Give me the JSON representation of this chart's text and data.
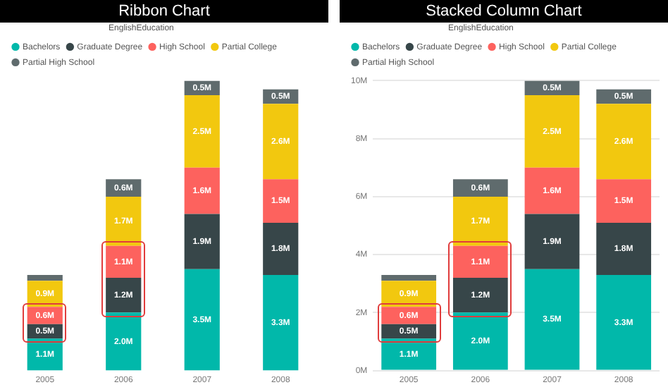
{
  "chart_data": [
    {
      "type": "bar",
      "title": "Ribbon Chart",
      "legend_title": "EnglishEducation",
      "legend": "top left",
      "tick_labels": "x",
      "stacked": true,
      "categories": [
        "2005",
        "2006",
        "2007",
        "2008"
      ],
      "series": [
        {
          "name": "Bachelors",
          "color": "#01b8aa",
          "values": [
            1.1,
            2.0,
            3.5,
            3.3
          ],
          "value_labels": [
            "1.1M",
            "2.0M",
            "3.5M",
            "3.3M"
          ]
        },
        {
          "name": "Graduate Degree",
          "color": "#374649",
          "values": [
            0.5,
            1.2,
            1.9,
            1.8
          ],
          "value_labels": [
            "0.5M",
            "1.2M",
            "1.9M",
            "1.8M"
          ]
        },
        {
          "name": "High School",
          "color": "#fd625e",
          "values": [
            0.6,
            1.1,
            1.6,
            1.5
          ],
          "value_labels": [
            "0.6M",
            "1.1M",
            "1.6M",
            "1.5M"
          ]
        },
        {
          "name": "Partial College",
          "color": "#f2c80f",
          "values": [
            0.9,
            1.7,
            2.5,
            2.6
          ],
          "value_labels": [
            "0.9M",
            "1.7M",
            "2.5M",
            "2.6M"
          ]
        },
        {
          "name": "Partial High School",
          "color": "#5f6b6d",
          "values": [
            0.2,
            0.6,
            0.5,
            0.5
          ],
          "value_labels": [
            null,
            "0.6M",
            "0.5M",
            "0.5M"
          ]
        }
      ]
    },
    {
      "type": "bar",
      "title": "Stacked Column Chart",
      "legend_title": "EnglishEducation",
      "legend": "top left",
      "stacked": true,
      "grid": "y",
      "categories": [
        "2005",
        "2006",
        "2007",
        "2008"
      ],
      "ylim": [
        0,
        10
      ],
      "yticks": [
        {
          "value": 0,
          "label": "0M"
        },
        {
          "value": 2,
          "label": "2M"
        },
        {
          "value": 4,
          "label": "4M"
        },
        {
          "value": 6,
          "label": "6M"
        },
        {
          "value": 8,
          "label": "8M"
        },
        {
          "value": 10,
          "label": "10M"
        }
      ],
      "series": [
        {
          "name": "Bachelors",
          "color": "#01b8aa",
          "values": [
            1.1,
            2.0,
            3.5,
            3.3
          ],
          "value_labels": [
            "1.1M",
            "2.0M",
            "3.5M",
            "3.3M"
          ]
        },
        {
          "name": "Graduate Degree",
          "color": "#374649",
          "values": [
            0.5,
            1.2,
            1.9,
            1.8
          ],
          "value_labels": [
            "0.5M",
            "1.2M",
            "1.9M",
            "1.8M"
          ]
        },
        {
          "name": "High School",
          "color": "#fd625e",
          "values": [
            0.6,
            1.1,
            1.6,
            1.5
          ],
          "value_labels": [
            "0.6M",
            "1.1M",
            "1.6M",
            "1.5M"
          ]
        },
        {
          "name": "Partial College",
          "color": "#f2c80f",
          "values": [
            0.9,
            1.7,
            2.5,
            2.6
          ],
          "value_labels": [
            "0.9M",
            "1.7M",
            "2.5M",
            "2.6M"
          ]
        },
        {
          "name": "Partial High School",
          "color": "#5f6b6d",
          "values": [
            0.2,
            0.6,
            0.5,
            0.5
          ],
          "value_labels": [
            null,
            "0.6M",
            "0.5M",
            "0.5M"
          ]
        }
      ]
    }
  ]
}
